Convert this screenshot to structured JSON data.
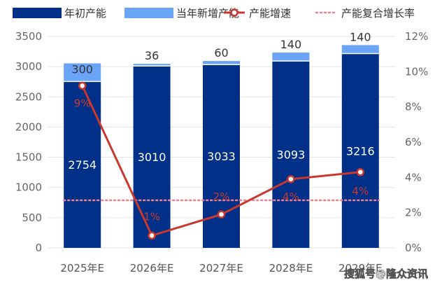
{
  "chart_data": {
    "type": "bar",
    "stacked": true,
    "categories": [
      "2025年E",
      "2026年E",
      "2027年E",
      "2028年E",
      "2029年E"
    ],
    "series": [
      {
        "name": "年初产能",
        "type": "bar",
        "axis": "left",
        "color": "#003087",
        "values": [
          2754,
          3010,
          3033,
          3093,
          3216
        ],
        "labels": [
          "2754",
          "3010",
          "3033",
          "3093",
          "3216"
        ]
      },
      {
        "name": "当年新增产能",
        "type": "bar",
        "axis": "left",
        "color": "#6aa4f7",
        "values": [
          300,
          36,
          60,
          140,
          140
        ],
        "labels": [
          "300",
          "36",
          "60",
          "140",
          "140"
        ]
      },
      {
        "name": "产能增速",
        "type": "line",
        "axis": "right",
        "color": "#c8382e",
        "values": [
          9.2,
          0.7,
          1.9,
          3.9,
          4.3
        ],
        "labels": [
          "9%",
          "1%",
          "2%",
          "4%",
          "4%"
        ]
      },
      {
        "name": "产能复合增长率",
        "type": "dotted-line",
        "axis": "right",
        "color": "#f08090",
        "values": [
          2.7,
          2.7,
          2.7,
          2.7,
          2.7
        ]
      }
    ],
    "y_left": {
      "min": 0,
      "max": 3500,
      "step": 500,
      "ticks": [
        "0",
        "500",
        "1000",
        "1500",
        "2000",
        "2500",
        "3000",
        "3500"
      ]
    },
    "y_right": {
      "min": 0,
      "max": 12,
      "step": 2,
      "ticks": [
        "0%",
        "2%",
        "4%",
        "6%",
        "8%",
        "10%",
        "12%"
      ]
    },
    "legend_position": "top",
    "grid": true,
    "watermark": "搜狐号@隆众资讯"
  }
}
